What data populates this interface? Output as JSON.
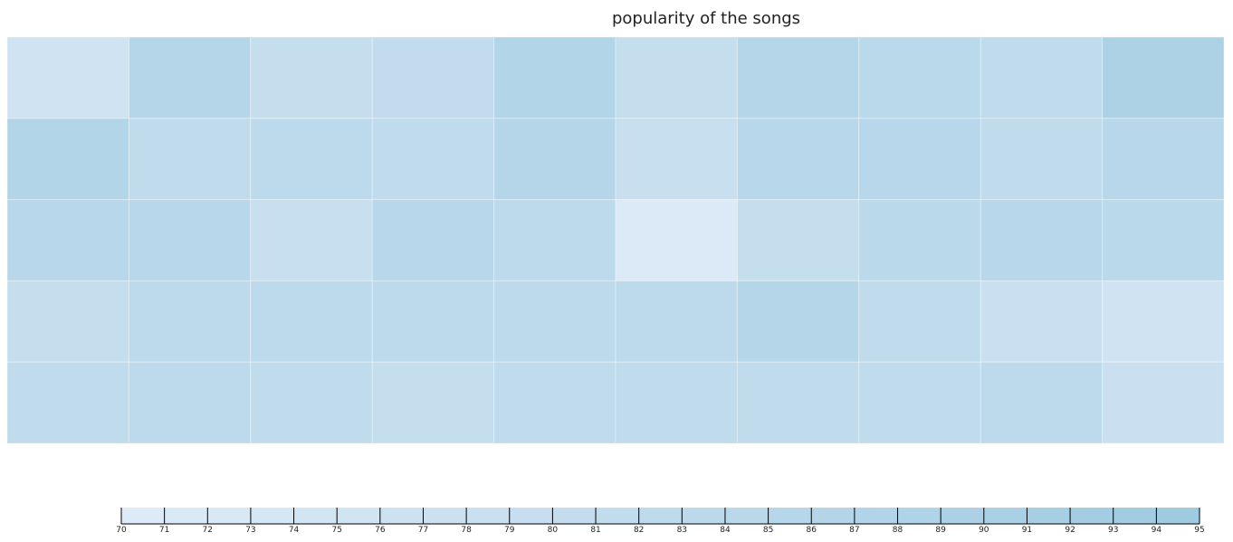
{
  "chart_data": {
    "type": "heatmap",
    "title": "popularity of the songs",
    "rows": 5,
    "cols": 10,
    "values": [
      [
        76,
        86,
        80,
        81,
        87,
        80,
        86,
        84,
        82,
        89
      ],
      [
        87,
        82,
        83,
        82,
        86,
        79,
        85,
        85,
        82,
        85
      ],
      [
        85,
        85,
        79,
        85,
        83,
        71,
        80,
        84,
        85,
        84
      ],
      [
        80,
        83,
        83,
        83,
        83,
        83,
        86,
        82,
        78,
        76
      ],
      [
        82,
        83,
        82,
        80,
        82,
        82,
        82,
        82,
        83,
        78
      ]
    ],
    "color_scale": {
      "min": 70,
      "max": 95,
      "low_color": "#deebf7",
      "high_color": "#9ecae1",
      "ticks": [
        70,
        71,
        72,
        73,
        74,
        75,
        76,
        77,
        78,
        79,
        80,
        81,
        82,
        83,
        84,
        85,
        86,
        87,
        88,
        89,
        90,
        91,
        92,
        93,
        94,
        95
      ]
    }
  }
}
